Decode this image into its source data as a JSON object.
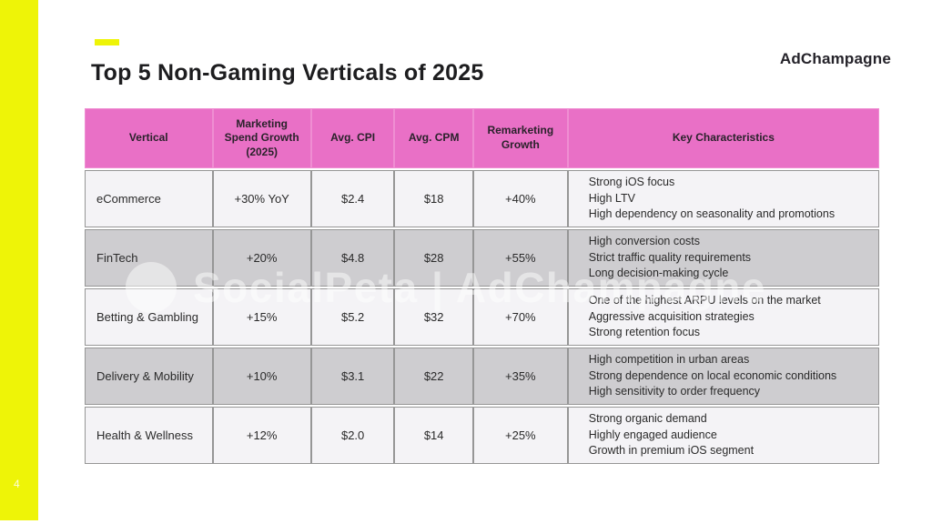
{
  "slide": {
    "title": "Top 5 Non-Gaming Verticals of 2025",
    "logo_text": "AdChampagne",
    "watermark_text": "SocialPeta | AdChampagne",
    "page_number": "4"
  },
  "colors": {
    "accent_yellow": "#eef407",
    "header_pink": "#e970c6",
    "row_light": "#f4f3f6",
    "row_dark": "#cecdd0"
  },
  "table": {
    "headers": {
      "vertical": "Vertical",
      "spend_growth": "Marketing Spend Growth (2025)",
      "avg_cpi": "Avg. CPI",
      "avg_cpm": "Avg. CPM",
      "remarketing_growth": "Remarketing Growth",
      "key_characteristics": "Key Characteristics"
    },
    "rows": [
      {
        "vertical": "eCommerce",
        "spend_growth": "+30% YoY",
        "avg_cpi": "$2.4",
        "avg_cpm": "$18",
        "remarketing_growth": "+40%",
        "characteristics": [
          "Strong iOS focus",
          "High LTV",
          "High dependency on seasonality and promotions"
        ]
      },
      {
        "vertical": "FinTech",
        "spend_growth": "+20%",
        "avg_cpi": "$4.8",
        "avg_cpm": "$28",
        "remarketing_growth": "+55%",
        "characteristics": [
          "High conversion costs",
          "Strict traffic quality requirements",
          "Long decision-making cycle"
        ]
      },
      {
        "vertical": "Betting & Gambling",
        "spend_growth": "+15%",
        "avg_cpi": "$5.2",
        "avg_cpm": "$32",
        "remarketing_growth": "+70%",
        "characteristics": [
          "One of the highest ARPU levels on the market",
          "Aggressive acquisition strategies",
          "Strong retention focus"
        ]
      },
      {
        "vertical": "Delivery & Mobility",
        "spend_growth": "+10%",
        "avg_cpi": "$3.1",
        "avg_cpm": "$22",
        "remarketing_growth": "+35%",
        "characteristics": [
          "High competition in urban areas",
          "Strong dependence on local economic conditions",
          "High sensitivity to order frequency"
        ]
      },
      {
        "vertical": "Health & Wellness",
        "spend_growth": "+12%",
        "avg_cpi": "$2.0",
        "avg_cpm": "$14",
        "remarketing_growth": "+25%",
        "characteristics": [
          "Strong organic demand",
          "Highly engaged audience",
          "Growth in premium iOS segment"
        ]
      }
    ]
  }
}
